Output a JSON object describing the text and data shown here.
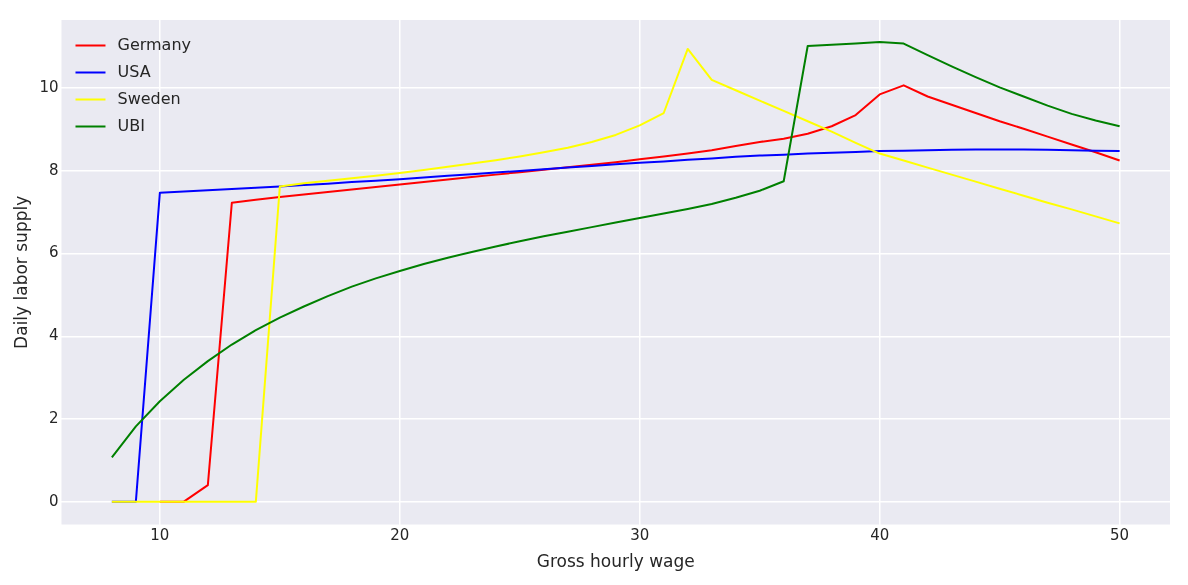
{
  "chart_data": {
    "type": "line",
    "xlabel": "Gross hourly wage",
    "ylabel": "Daily labor supply",
    "x": [
      8,
      9,
      10,
      11,
      12,
      13,
      14,
      15,
      16,
      17,
      18,
      19,
      20,
      21,
      22,
      23,
      24,
      25,
      26,
      27,
      28,
      29,
      30,
      31,
      32,
      33,
      34,
      35,
      36,
      37,
      38,
      39,
      40,
      41,
      42,
      43,
      44,
      45,
      46,
      47,
      48,
      49,
      50
    ],
    "series": [
      {
        "name": "Germany",
        "color": "#ff0000",
        "values": [
          null,
          null,
          0,
          0,
          0.4,
          7.23,
          7.3,
          7.37,
          7.43,
          7.49,
          7.55,
          7.61,
          7.67,
          7.73,
          7.79,
          7.85,
          7.91,
          7.97,
          8.03,
          8.09,
          8.15,
          8.21,
          8.28,
          8.35,
          8.42,
          8.5,
          8.6,
          8.7,
          8.78,
          8.9,
          9.08,
          9.35,
          9.85,
          10.07,
          9.8,
          9.6,
          9.4,
          9.2,
          9.02,
          8.83,
          8.64,
          8.45,
          8.25
        ]
      },
      {
        "name": "USA",
        "color": "#0000ff",
        "values": [
          0,
          0,
          7.47,
          7.5,
          7.53,
          7.56,
          7.59,
          7.62,
          7.66,
          7.69,
          7.73,
          7.76,
          7.8,
          7.84,
          7.88,
          7.92,
          7.96,
          8.0,
          8.04,
          8.08,
          8.12,
          8.16,
          8.2,
          8.23,
          8.27,
          8.3,
          8.34,
          8.37,
          8.39,
          8.42,
          8.44,
          8.46,
          8.48,
          8.49,
          8.5,
          8.51,
          8.52,
          8.52,
          8.52,
          8.51,
          8.5,
          8.49,
          8.48
        ]
      },
      {
        "name": "Sweden",
        "color": "#ffff00",
        "values": [
          0,
          0,
          0,
          0,
          0,
          0,
          0,
          7.62,
          7.7,
          7.76,
          7.82,
          7.88,
          7.95,
          8.02,
          8.1,
          8.18,
          8.26,
          8.35,
          8.45,
          8.56,
          8.7,
          8.87,
          9.1,
          9.4,
          10.95,
          10.2,
          9.95,
          9.7,
          9.45,
          9.2,
          8.95,
          8.68,
          8.42,
          8.25,
          8.08,
          7.91,
          7.74,
          7.57,
          7.4,
          7.23,
          7.07,
          6.9,
          6.73
        ]
      },
      {
        "name": "UBI",
        "color": "#008000",
        "values": [
          1.07,
          1.82,
          2.43,
          2.95,
          3.4,
          3.8,
          4.15,
          4.45,
          4.72,
          4.97,
          5.2,
          5.4,
          5.58,
          5.75,
          5.9,
          6.04,
          6.17,
          6.3,
          6.42,
          6.53,
          6.64,
          6.75,
          6.86,
          6.97,
          7.08,
          7.2,
          7.35,
          7.52,
          7.75,
          11.02,
          11.05,
          11.08,
          11.12,
          11.08,
          10.8,
          10.53,
          10.27,
          10.02,
          9.8,
          9.58,
          9.38,
          9.22,
          9.08
        ]
      }
    ],
    "xlim": [
      5.9,
      52.1
    ],
    "xticks": [
      10,
      20,
      30,
      40,
      50
    ],
    "ylim": [
      -0.555,
      11.65
    ],
    "yticks": [
      0,
      2,
      4,
      6,
      8,
      10
    ],
    "grid": true,
    "legend": "top left"
  }
}
